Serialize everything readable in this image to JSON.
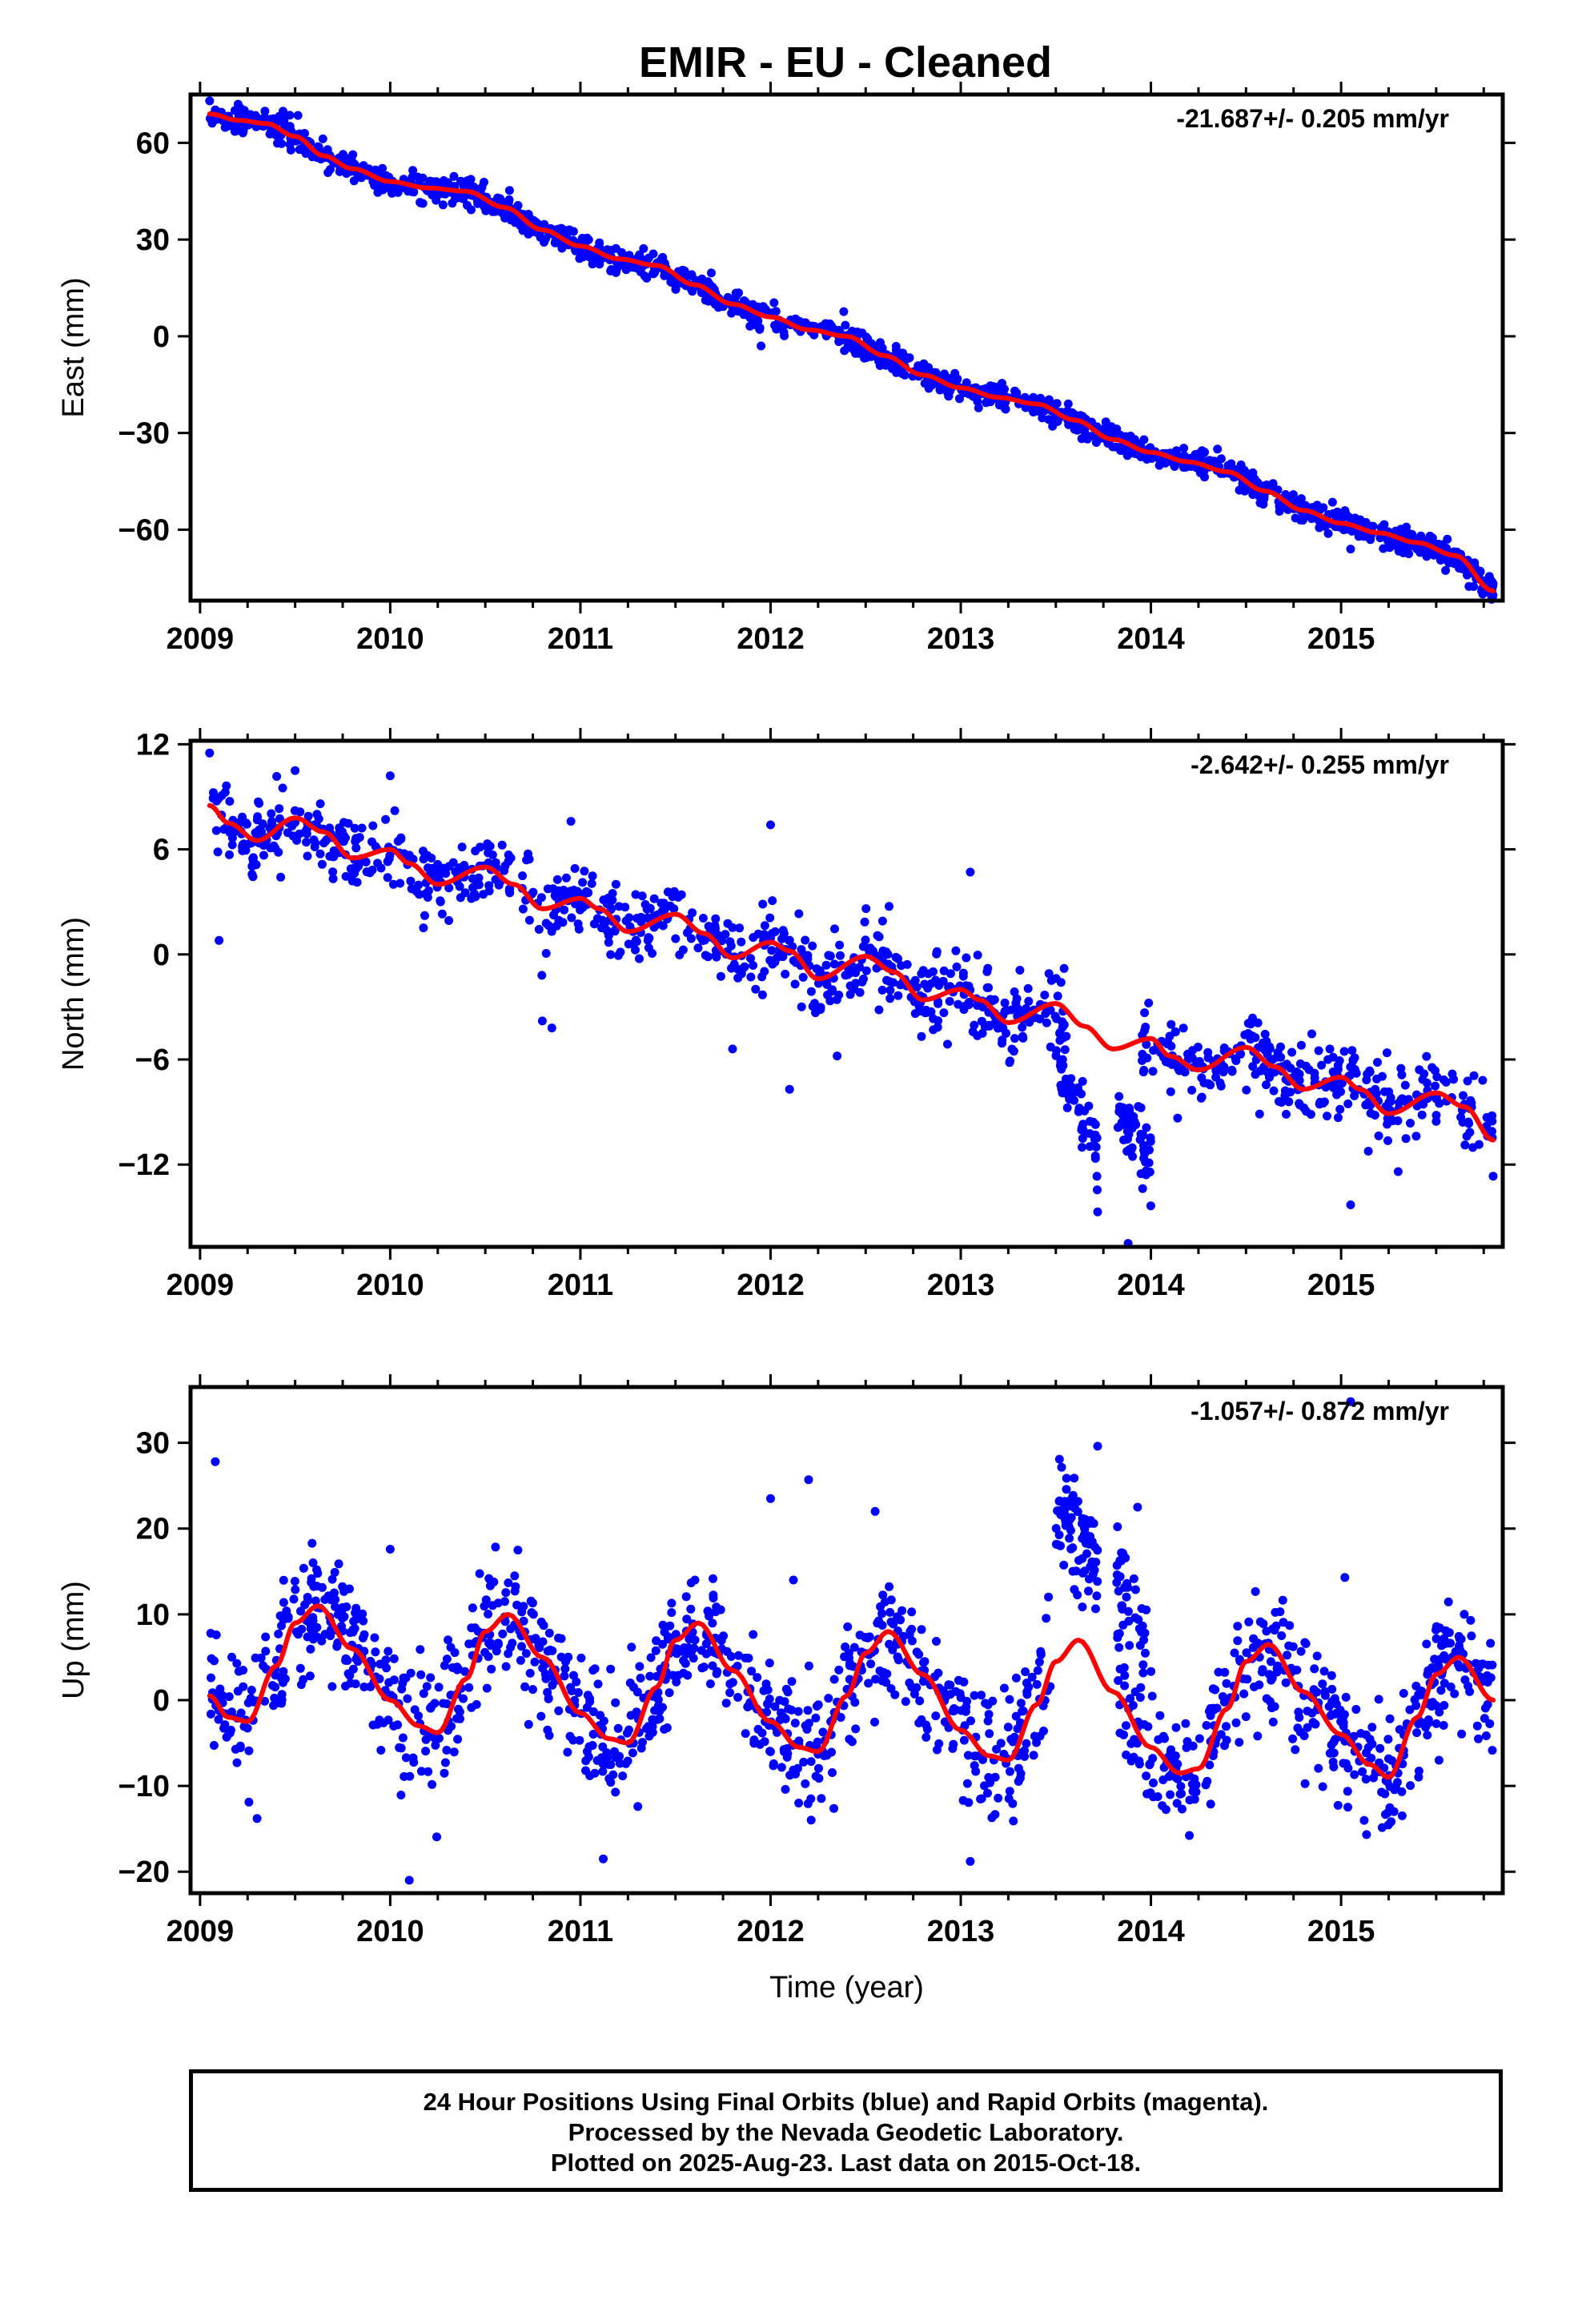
{
  "figure": {
    "title": "EMIR  - EU - Cleaned",
    "footer_lines": [
      "24 Hour Positions Using Final Orbits (blue) and Rapid Orbits (magenta).",
      "Processed by the Nevada Geodetic Laboratory.",
      "Plotted on 2025-Aug-23. Last data on 2015-Oct-18."
    ]
  },
  "colors": {
    "points": "#0000ff",
    "fit": "#ff0000",
    "frame": "#000000"
  },
  "chart_data": [
    {
      "type": "scatter",
      "ylabel": "East (mm)",
      "xlabel": "",
      "rate_label": "-21.687+/- 0.205 mm/yr",
      "xlim": [
        2008.95,
        2015.85
      ],
      "ylim": [
        -82,
        75
      ],
      "xticks": [
        2009,
        2010,
        2011,
        2012,
        2013,
        2014,
        2015
      ],
      "yticks": [
        60,
        30,
        0,
        -30,
        -60
      ],
      "ytick_labels": [
        "60",
        "30",
        "0",
        "−30",
        "−60"
      ],
      "fit_x": [
        2009.05,
        2009.2,
        2009.35,
        2009.5,
        2009.65,
        2009.8,
        2010.0,
        2010.2,
        2010.4,
        2010.6,
        2010.8,
        2011.0,
        2011.2,
        2011.4,
        2011.6,
        2011.8,
        2012.0,
        2012.2,
        2012.4,
        2012.6,
        2012.8,
        2013.0,
        2013.2,
        2013.4,
        2013.6,
        2013.8,
        2014.0,
        2014.2,
        2014.4,
        2014.6,
        2014.8,
        2015.0,
        2015.2,
        2015.4,
        2015.6,
        2015.8
      ],
      "fit_y": [
        69,
        67,
        66,
        62,
        56,
        52,
        48,
        46,
        45,
        40,
        33,
        28,
        24,
        22,
        16,
        10,
        6,
        2,
        0,
        -6,
        -12,
        -16,
        -19,
        -21,
        -26,
        -32,
        -36,
        -39,
        -42,
        -48,
        -54,
        -58,
        -61,
        -64,
        -68,
        -79
      ],
      "scatter": {
        "noise": 2.0,
        "density": 220,
        "seed": 11,
        "segments": [
          [
            2009.05,
            2015.8
          ]
        ],
        "outliers": [
          [
            2009.2,
            72
          ],
          [
            2011.1,
            29
          ],
          [
            2011.95,
            -3
          ],
          [
            2015.05,
            -66
          ],
          [
            2013.9,
            -32
          ],
          [
            2014.35,
            -35
          ]
        ]
      }
    },
    {
      "type": "scatter",
      "ylabel": "North (mm)",
      "xlabel": "",
      "rate_label": "-2.642+/- 0.255 mm/yr",
      "xlim": [
        2008.95,
        2015.85
      ],
      "ylim": [
        -16.7,
        12.2
      ],
      "xticks": [
        2009,
        2010,
        2011,
        2012,
        2013,
        2014,
        2015
      ],
      "yticks": [
        12,
        6,
        0,
        -6,
        -12
      ],
      "ytick_labels": [
        "12",
        "6",
        "0",
        "−6",
        "−12"
      ],
      "fit_x": [
        2009.05,
        2009.15,
        2009.3,
        2009.5,
        2009.65,
        2009.8,
        2010.0,
        2010.1,
        2010.25,
        2010.5,
        2010.65,
        2010.8,
        2011.0,
        2011.1,
        2011.25,
        2011.5,
        2011.65,
        2011.8,
        2012.0,
        2012.1,
        2012.25,
        2012.5,
        2012.65,
        2012.8,
        2013.0,
        2013.1,
        2013.25,
        2013.5,
        2013.65,
        2013.8,
        2014.0,
        2014.1,
        2014.25,
        2014.5,
        2014.65,
        2014.8,
        2015.0,
        2015.1,
        2015.25,
        2015.5,
        2015.65,
        2015.8
      ],
      "fit_y": [
        8.5,
        7.5,
        6.5,
        7.8,
        7.0,
        5.5,
        6.0,
        5.2,
        4.0,
        5.0,
        4.0,
        2.6,
        3.2,
        2.6,
        1.3,
        2.3,
        1.2,
        -0.2,
        0.7,
        0.2,
        -1.4,
        -0.1,
        -1.0,
        -2.6,
        -2.0,
        -2.6,
        -3.9,
        -2.8,
        -4.1,
        -5.4,
        -4.8,
        -5.8,
        -6.6,
        -5.3,
        -6.4,
        -7.7,
        -7.0,
        -7.7,
        -9.1,
        -7.9,
        -8.7,
        -10.6
      ],
      "scatter": {
        "noise": 1.05,
        "density": 170,
        "seed": 23,
        "segments": [
          [
            2009.05,
            2013.55
          ],
          [
            2013.95,
            2015.8
          ]
        ],
        "outliers": [
          [
            2009.05,
            11.5
          ],
          [
            2009.1,
            0.8
          ],
          [
            2010.8,
            -3.8
          ],
          [
            2010.85,
            -4.2
          ],
          [
            2011.8,
            -5.4
          ],
          [
            2012.1,
            -7.7
          ],
          [
            2013.05,
            4.7
          ],
          [
            2013.72,
            -14.7
          ],
          [
            2013.88,
            -16.5
          ],
          [
            2015.05,
            -14.3
          ],
          [
            2012.0,
            7.4
          ],
          [
            2010.0,
            10.2
          ],
          [
            2009.5,
            10.5
          ],
          [
            2010.95,
            7.6
          ],
          [
            2012.35,
            -5.8
          ],
          [
            2015.3,
            -12.4
          ]
        ]
      },
      "clusters": [
        {
          "x": [
            2013.5,
            2013.72
          ],
          "y_start": -5.5,
          "y_end": -11.5,
          "n": 60,
          "spread": 1.1,
          "seed": 31
        },
        {
          "x": [
            2013.82,
            2014.0
          ],
          "y_start": -9.2,
          "y_end": -12.0,
          "n": 60,
          "spread": 1.0,
          "seed": 37
        }
      ]
    },
    {
      "type": "scatter",
      "ylabel": "Up (mm)",
      "xlabel": "Time (year)",
      "rate_label": "-1.057+/- 0.872 mm/yr",
      "xlim": [
        2008.95,
        2015.85
      ],
      "ylim": [
        -22.5,
        36.5
      ],
      "xticks": [
        2009,
        2010,
        2011,
        2012,
        2013,
        2014,
        2015
      ],
      "yticks": [
        30,
        20,
        10,
        0,
        -10,
        -20
      ],
      "ytick_labels": [
        "30",
        "20",
        "10",
        "0",
        "−10",
        "−20"
      ],
      "fit_x": [
        2009.05,
        2009.15,
        2009.25,
        2009.4,
        2009.5,
        2009.62,
        2009.8,
        2010.0,
        2010.15,
        2010.25,
        2010.4,
        2010.5,
        2010.62,
        2010.8,
        2011.0,
        2011.15,
        2011.25,
        2011.4,
        2011.5,
        2011.62,
        2011.8,
        2012.0,
        2012.15,
        2012.25,
        2012.4,
        2012.5,
        2012.62,
        2012.8,
        2013.0,
        2013.15,
        2013.25,
        2013.4,
        2013.5,
        2013.62,
        2013.8,
        2014.0,
        2014.15,
        2014.25,
        2014.4,
        2014.5,
        2014.62,
        2014.8,
        2015.0,
        2015.15,
        2015.25,
        2015.4,
        2015.5,
        2015.62,
        2015.8
      ],
      "fit_y": [
        0.5,
        -2.0,
        -2.5,
        4.0,
        9.0,
        11.0,
        6.0,
        0.0,
        -3.0,
        -3.8,
        2.5,
        8.0,
        10.0,
        5.0,
        -1.5,
        -4.5,
        -5.0,
        1.5,
        7.0,
        9.0,
        3.5,
        -2.5,
        -5.5,
        -6.0,
        0.5,
        5.5,
        8.0,
        3.0,
        -3.5,
        -6.5,
        -7.0,
        -0.5,
        4.5,
        7.0,
        1.0,
        -5.5,
        -8.5,
        -8.0,
        -1.0,
        4.5,
        6.5,
        1.0,
        -4.0,
        -7.5,
        -9.0,
        -2.0,
        3.0,
        5.0,
        0.0
      ],
      "scatter": {
        "noise": 3.6,
        "density": 210,
        "seed": 47,
        "segments": [
          [
            2009.05,
            2013.48
          ],
          [
            2013.82,
            2015.8
          ]
        ],
        "outliers": [
          [
            2009.08,
            27.8
          ],
          [
            2012.0,
            23.5
          ],
          [
            2012.2,
            25.7
          ],
          [
            2012.12,
            14
          ],
          [
            2012.55,
            22
          ],
          [
            2013.05,
            -18.8
          ],
          [
            2010.1,
            -21
          ],
          [
            2010.0,
            17.6
          ],
          [
            2011.12,
            -18.5
          ],
          [
            2013.72,
            29.6
          ],
          [
            2013.93,
            22.5
          ],
          [
            2015.05,
            34.8
          ],
          [
            2015.02,
            14.3
          ],
          [
            2009.3,
            -13.8
          ]
        ]
      },
      "clusters": [
        {
          "x": [
            2013.5,
            2013.72
          ],
          "y_start": 22,
          "y_end": 17,
          "n": 80,
          "spread": 3.0,
          "seed": 53
        },
        {
          "x": [
            2013.82,
            2013.98
          ],
          "y_start": 14,
          "y_end": 8,
          "n": 40,
          "spread": 3.5,
          "seed": 59
        }
      ]
    }
  ]
}
